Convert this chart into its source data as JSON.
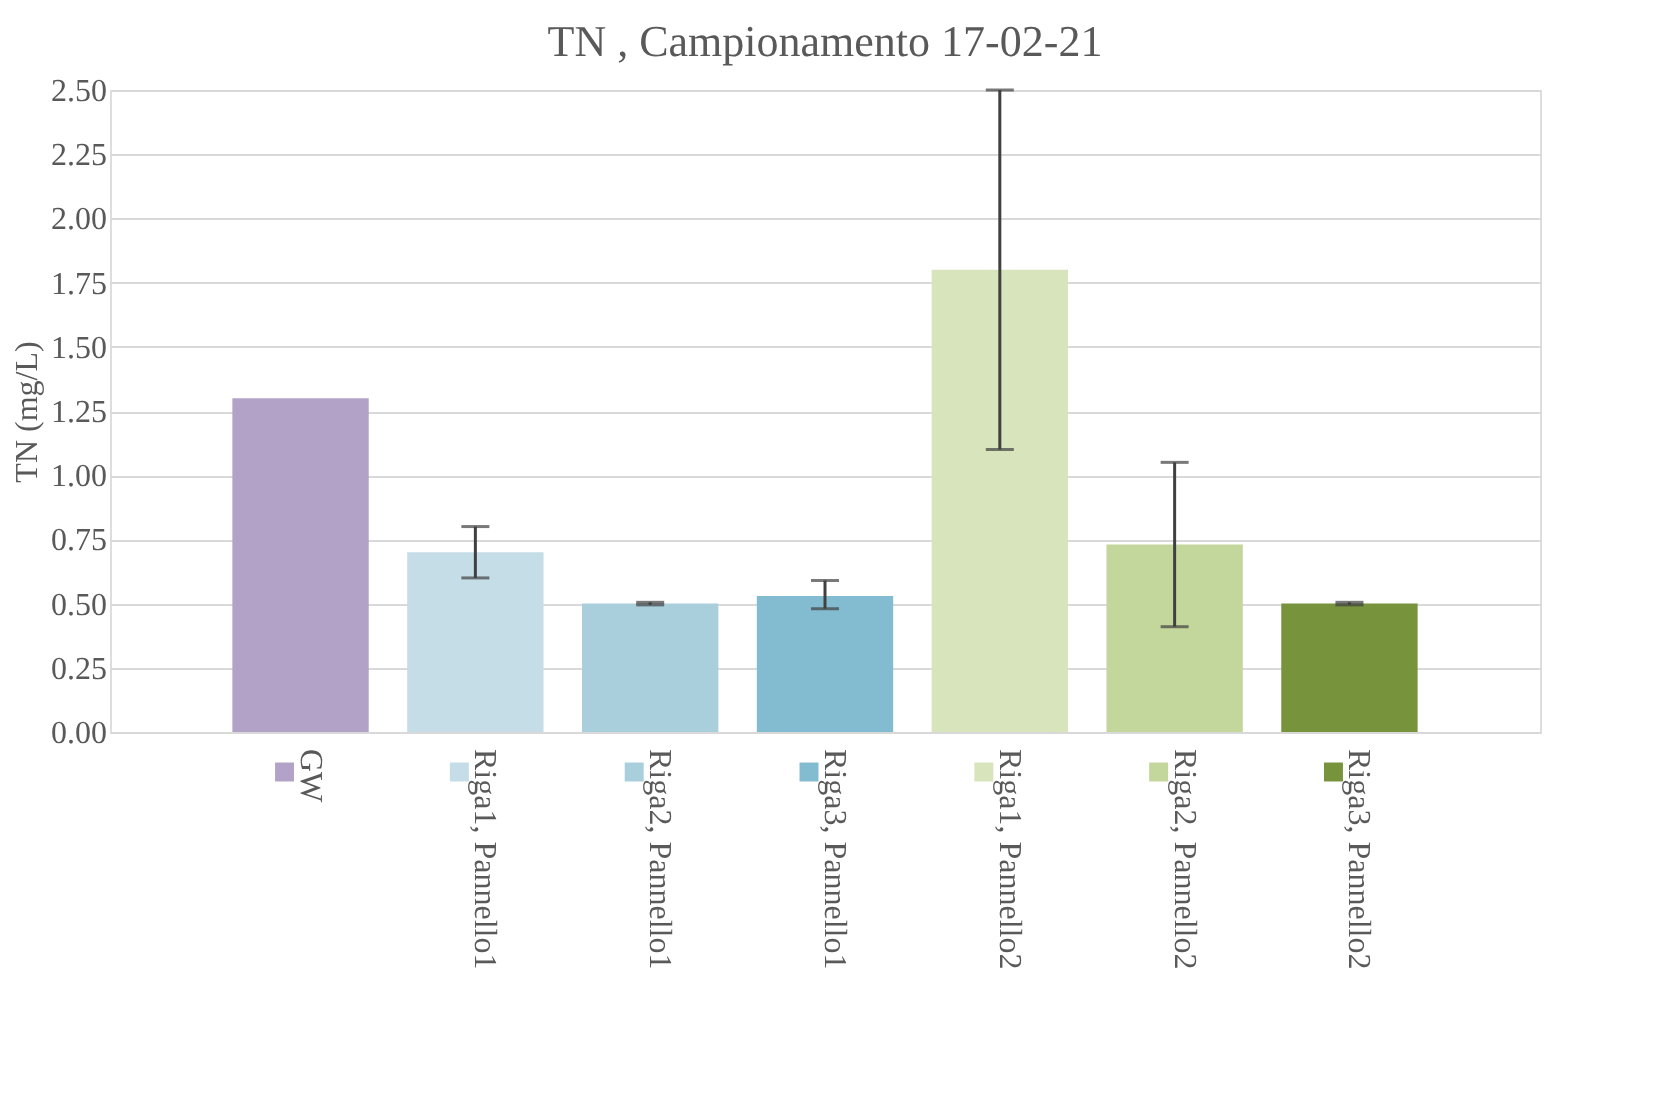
{
  "chart_data": {
    "type": "bar",
    "title": "TN , Campionamento 17-02-21",
    "ylabel": "TN (mg/L)",
    "categories": [
      "GW",
      "Riga1, Pannello1",
      "Riga2, Pannello1",
      "Riga3, Pannello1",
      "Riga1, Pannello2",
      "Riga2, Pannello2",
      "Riga3, Pannello2"
    ],
    "values": [
      1.3,
      0.7,
      0.5,
      0.53,
      1.8,
      0.73,
      0.5
    ],
    "colors": [
      "#b3a2c7",
      "#c5dde6",
      "#a9cfdc",
      "#83bcd0",
      "#d8e4bc",
      "#c3d69b",
      "#77933c"
    ],
    "errors": [
      null,
      [
        0.6,
        0.8
      ],
      [
        0.495,
        0.505
      ],
      [
        0.48,
        0.59
      ],
      [
        1.1,
        2.5
      ],
      [
        0.41,
        1.05
      ],
      [
        0.495,
        0.505
      ]
    ],
    "ylim": [
      0,
      2.5
    ],
    "yticks": [
      {
        "value": 0,
        "label": "0.00"
      },
      {
        "value": 0.25,
        "label": "0.25"
      },
      {
        "value": 0.5,
        "label": "0.50"
      },
      {
        "value": 0.75,
        "label": "0.75"
      },
      {
        "value": 1,
        "label": "1.00"
      },
      {
        "value": 1.25,
        "label": "1.25"
      },
      {
        "value": 1.5,
        "label": "1.50"
      },
      {
        "value": 1.75,
        "label": "1.75"
      },
      {
        "value": 2,
        "label": "2.00"
      },
      {
        "value": 2.25,
        "label": "2.25"
      },
      {
        "value": 2.5,
        "label": "2.50"
      }
    ],
    "grid": "y",
    "legend": false
  }
}
